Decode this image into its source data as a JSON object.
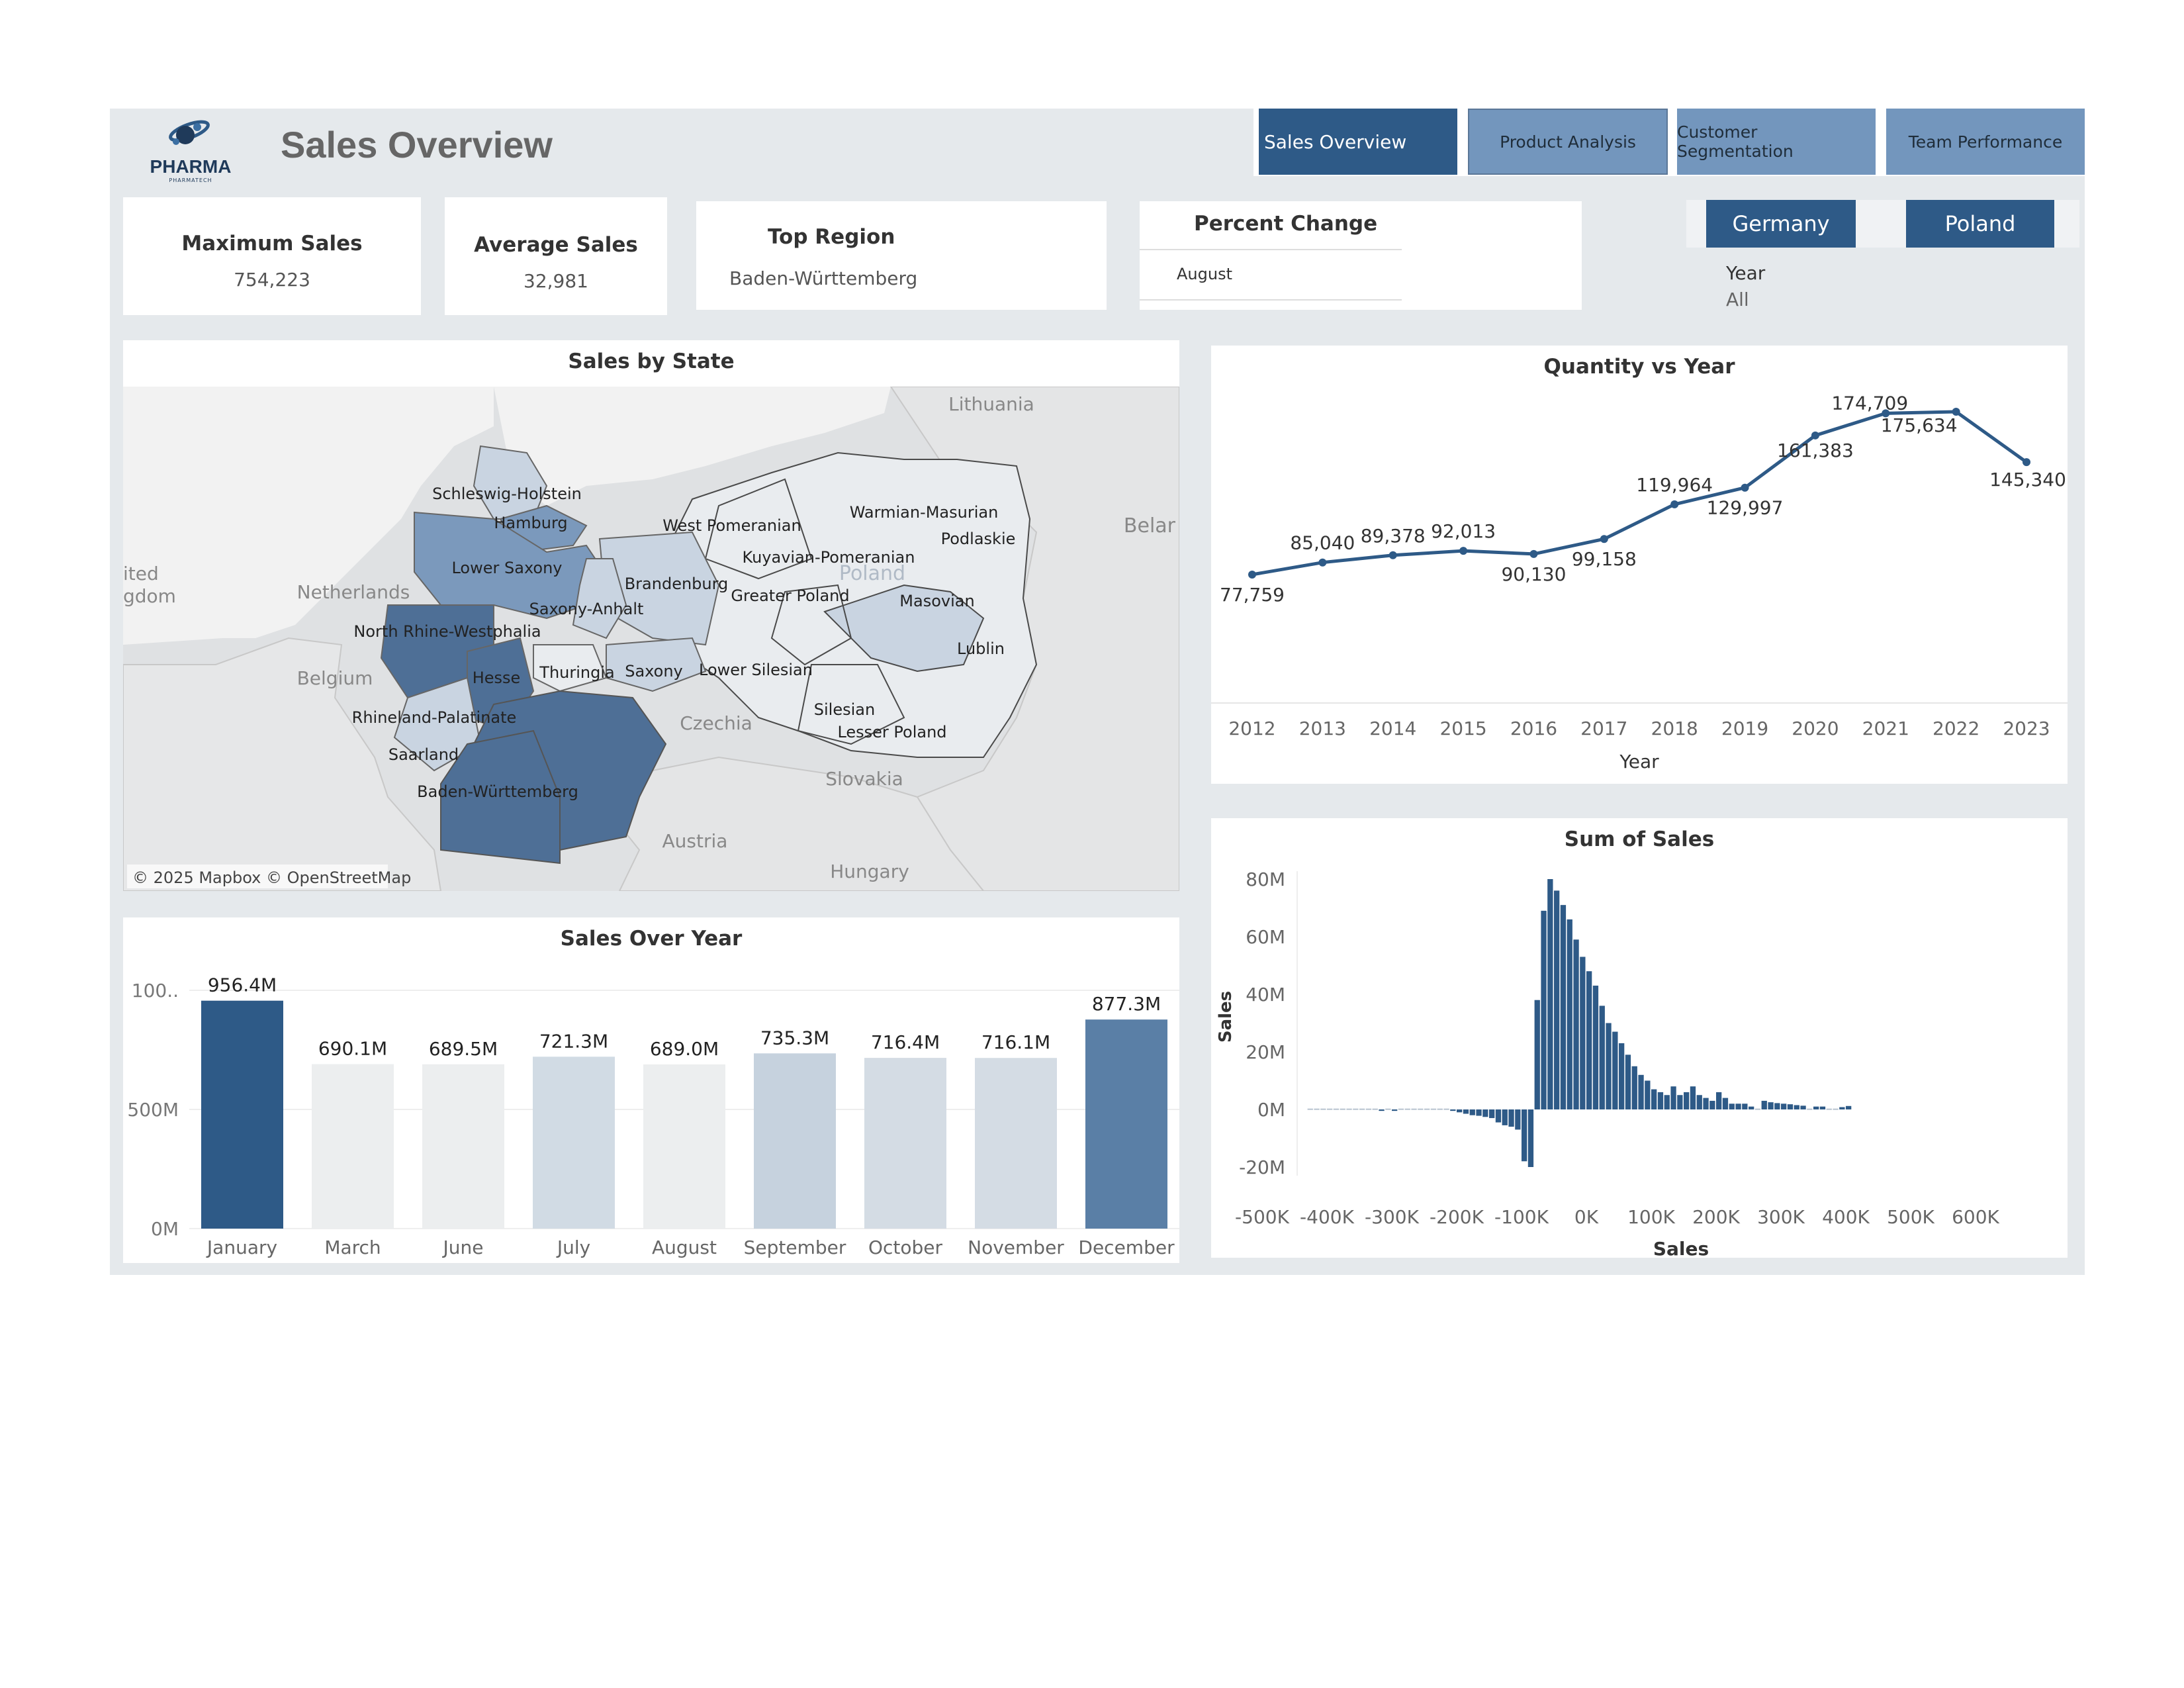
{
  "header": {
    "logo_text": "PHARMA",
    "logo_sub": "PHARMATECH",
    "title": "Sales Overview"
  },
  "nav": [
    {
      "label": "Sales Overview",
      "active": true
    },
    {
      "label": "Product Analysis",
      "active": false
    },
    {
      "label": "Customer Segmentation",
      "active": false
    },
    {
      "label": "Team Performance",
      "active": false
    }
  ],
  "kpis": {
    "max_label": "Maximum Sales",
    "max_value": "754,223",
    "avg_label": "Average Sales",
    "avg_value": "32,981",
    "top_label": "Top Region",
    "top_value": "Baden-Württemberg",
    "pct_label": "Percent Change",
    "pct_value": "August"
  },
  "filters": {
    "country_buttons": [
      "Germany",
      "Poland"
    ],
    "year_label": "Year",
    "year_value": "All"
  },
  "map": {
    "title": "Sales by State",
    "attribution": "© 2025 Mapbox © OpenStreetMap",
    "colors": {
      "dark": "#4e6f96",
      "medium": "#7b99bc",
      "light": "#c9d4e1",
      "pale": "#e9ecef"
    },
    "background_labels": [
      "Lithuania",
      "Belar",
      "ited",
      "gdom",
      "Netherlands",
      "Belgium",
      "Czechia",
      "Slovakia",
      "Austria",
      "Hungary",
      "Poland"
    ],
    "state_labels": [
      "Schleswig-Holstein",
      "Hamburg",
      "Lower Saxony",
      "Brandenburg",
      "Saxony-Anhalt",
      "North Rhine-Westphalia",
      "Hesse",
      "Thuringia",
      "Saxony",
      "Rhineland-Palatinate",
      "Saarland",
      "Baden-Württemberg",
      "West Pomeranian",
      "Warmian-Masurian",
      "Podlaskie",
      "Kuyavian-Pomeranian",
      "Greater Poland",
      "Masovian",
      "Lublin",
      "Lower Silesian",
      "Silesian",
      "Lesser Poland"
    ]
  },
  "chart_data": [
    {
      "type": "line",
      "title": "Quantity vs Year",
      "xlabel": "Year",
      "ylabel": "",
      "x": [
        "2012",
        "2013",
        "2014",
        "2015",
        "2016",
        "2017",
        "2018",
        "2019",
        "2020",
        "2021",
        "2022",
        "2023"
      ],
      "values": [
        77759,
        85040,
        89378,
        92013,
        90130,
        99158,
        119964,
        129997,
        161383,
        174709,
        175634,
        145340
      ],
      "labels": [
        "77,759",
        "85,040",
        "89,378",
        "92,013",
        "90,130",
        "99,158",
        "119,964",
        "129,997",
        "161,383",
        "174,709",
        "175,634",
        "145,340"
      ],
      "color": "#2e5a87"
    },
    {
      "type": "bar",
      "title": "Sales Over Year",
      "xlabel": "",
      "ylabel": "",
      "categories": [
        "January",
        "March",
        "June",
        "July",
        "August",
        "September",
        "October",
        "November",
        "December"
      ],
      "values": [
        956.4,
        690.1,
        689.5,
        721.3,
        689.0,
        735.3,
        716.4,
        716.1,
        877.3
      ],
      "labels": [
        "956.4M",
        "690.1M",
        "689.5M",
        "721.3M",
        "689.0M",
        "735.3M",
        "716.4M",
        "716.1M",
        "877.3M"
      ],
      "colors": [
        "#2e5a87",
        "#eceeef",
        "#eceeef",
        "#d1dbe4",
        "#eceeef",
        "#c6d2de",
        "#d4dce4",
        "#d4dce4",
        "#5a7fa6"
      ],
      "yticks": [
        "0M",
        "500M",
        "100.."
      ],
      "ylim": [
        0,
        1000
      ]
    },
    {
      "type": "bar",
      "title": "Sum of Sales",
      "xlabel": "Sales",
      "ylabel": "Sales",
      "xticks": [
        "-500K",
        "-400K",
        "-300K",
        "-200K",
        "-100K",
        "0K",
        "100K",
        "200K",
        "300K",
        "400K",
        "500K",
        "600K"
      ],
      "yticks": [
        "-20M",
        "0M",
        "20M",
        "40M",
        "60M",
        "80M"
      ],
      "bin_width": 10000,
      "bins_start": -430000,
      "values": [
        0.3,
        0.3,
        0.3,
        0.3,
        0.3,
        0.3,
        0.3,
        0.3,
        0.3,
        0.3,
        0.3,
        -0.5,
        0.3,
        -0.5,
        0.3,
        0.3,
        0.3,
        0.3,
        0.3,
        0.3,
        0.3,
        0.3,
        -0.5,
        -1,
        -1.5,
        -2,
        -2.2,
        -2.6,
        -3,
        -4.5,
        -5.5,
        -6,
        -7,
        -18,
        -20,
        38,
        69,
        80,
        76,
        71,
        66,
        59,
        53,
        48,
        43,
        36,
        30,
        27,
        23,
        19,
        15,
        12,
        10,
        7,
        6,
        5,
        8,
        5,
        6,
        8,
        5,
        4,
        3,
        6,
        4,
        2,
        2,
        2,
        1,
        0.3,
        3,
        2.5,
        2.2,
        2,
        1.8,
        1.5,
        1.3,
        0.3,
        1,
        1,
        0.3,
        0.3,
        0.8,
        1.2
      ],
      "color": "#2e5a87",
      "ylim": [
        -20,
        80
      ],
      "xlim": [
        -500000,
        650000
      ]
    }
  ]
}
